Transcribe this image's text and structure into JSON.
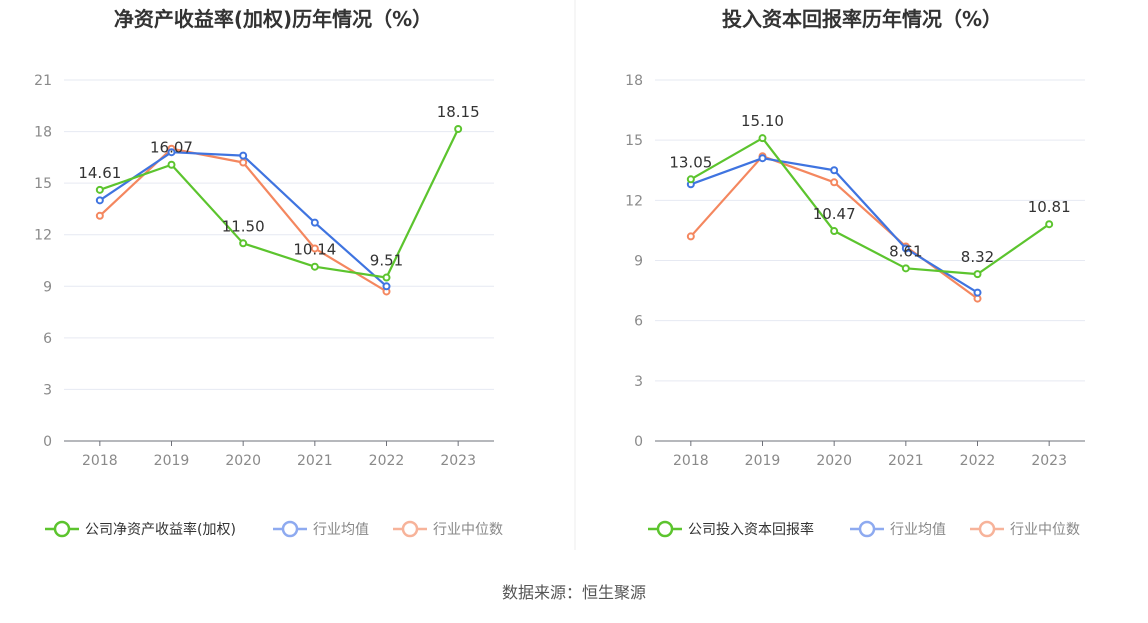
{
  "source_note": "数据来源：恒生聚源",
  "chart_data": [
    {
      "type": "line",
      "title": "净资产收益率(加权)历年情况（%）",
      "categories": [
        "2018",
        "2019",
        "2020",
        "2021",
        "2022",
        "2023"
      ],
      "ylim": [
        0,
        21
      ],
      "yticks": [
        0,
        3,
        6,
        9,
        12,
        15,
        18,
        21
      ],
      "grid": true,
      "legend_position": "bottom",
      "series": [
        {
          "name": "公司净资产收益率(加权)",
          "color": "#5cc42e",
          "values": [
            14.61,
            16.07,
            11.5,
            10.14,
            9.51,
            18.15
          ],
          "labels": [
            "14.61",
            "16.07",
            "11.50",
            "10.14",
            "9.51",
            "18.15"
          ]
        },
        {
          "name": "行业均值",
          "color": "#3f74e0",
          "values": [
            14.0,
            16.8,
            16.6,
            12.7,
            9.0,
            null
          ]
        },
        {
          "name": "行业中位数",
          "color": "#f4875f",
          "values": [
            13.1,
            17.0,
            16.2,
            11.2,
            8.7,
            null
          ]
        }
      ]
    },
    {
      "type": "line",
      "title": "投入资本回报率历年情况（%）",
      "categories": [
        "2018",
        "2019",
        "2020",
        "2021",
        "2022",
        "2023"
      ],
      "ylim": [
        0,
        18
      ],
      "yticks": [
        0,
        3,
        6,
        9,
        12,
        15,
        18
      ],
      "grid": true,
      "legend_position": "bottom",
      "series": [
        {
          "name": "公司投入资本回报率",
          "color": "#5cc42e",
          "values": [
            13.05,
            15.1,
            10.47,
            8.61,
            8.32,
            10.81
          ],
          "labels": [
            "13.05",
            "15.10",
            "10.47",
            "8.61",
            "8.32",
            "10.81"
          ]
        },
        {
          "name": "行业均值",
          "color": "#3f74e0",
          "values": [
            12.8,
            14.1,
            13.5,
            9.6,
            7.4,
            null
          ]
        },
        {
          "name": "行业中位数",
          "color": "#f4875f",
          "values": [
            10.2,
            14.2,
            12.9,
            9.7,
            7.1,
            null
          ]
        }
      ]
    }
  ]
}
